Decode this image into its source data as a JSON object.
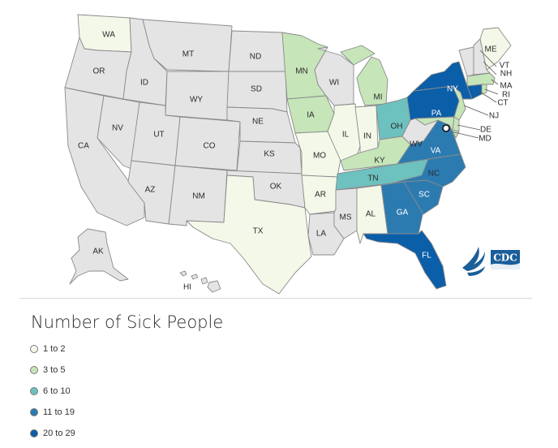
{
  "legend": {
    "title": "Number of Sick People",
    "items": [
      {
        "label": "1 to 2",
        "color": "#f3f8e9"
      },
      {
        "label": "3 to 5",
        "color": "#c6e5b9"
      },
      {
        "label": "6 to 10",
        "color": "#6dc1bf"
      },
      {
        "label": "11 to 19",
        "color": "#2b7bb1"
      },
      {
        "label": "20 to 29",
        "color": "#0b5ea8"
      }
    ]
  },
  "colors": {
    "no_cases": "#e4e4e4",
    "border": "#8a8a8a",
    "cdc_logo": "#1a5e9a"
  },
  "logo": {
    "text": "CDC",
    "icon": "hhs-eagle-icon"
  },
  "states": [
    {
      "abbr": "WA",
      "category": 1
    },
    {
      "abbr": "OR",
      "category": 0
    },
    {
      "abbr": "CA",
      "category": 0
    },
    {
      "abbr": "ID",
      "category": 0
    },
    {
      "abbr": "NV",
      "category": 0
    },
    {
      "abbr": "MT",
      "category": 0
    },
    {
      "abbr": "WY",
      "category": 0
    },
    {
      "abbr": "UT",
      "category": 0
    },
    {
      "abbr": "AZ",
      "category": 0
    },
    {
      "abbr": "CO",
      "category": 0
    },
    {
      "abbr": "NM",
      "category": 0
    },
    {
      "abbr": "ND",
      "category": 0
    },
    {
      "abbr": "SD",
      "category": 0
    },
    {
      "abbr": "NE",
      "category": 0
    },
    {
      "abbr": "KS",
      "category": 0
    },
    {
      "abbr": "OK",
      "category": 0
    },
    {
      "abbr": "TX",
      "category": 1
    },
    {
      "abbr": "MN",
      "category": 2
    },
    {
      "abbr": "IA",
      "category": 2
    },
    {
      "abbr": "MO",
      "category": 1
    },
    {
      "abbr": "AR",
      "category": 1
    },
    {
      "abbr": "LA",
      "category": 0
    },
    {
      "abbr": "WI",
      "category": 0
    },
    {
      "abbr": "IL",
      "category": 1
    },
    {
      "abbr": "IN",
      "category": 1
    },
    {
      "abbr": "MI",
      "category": 2
    },
    {
      "abbr": "OH",
      "category": 3
    },
    {
      "abbr": "KY",
      "category": 2
    },
    {
      "abbr": "TN",
      "category": 3
    },
    {
      "abbr": "MS",
      "category": 0
    },
    {
      "abbr": "AL",
      "category": 1
    },
    {
      "abbr": "GA",
      "category": 4
    },
    {
      "abbr": "FL",
      "category": 5
    },
    {
      "abbr": "SC",
      "category": 4
    },
    {
      "abbr": "NC",
      "category": 4
    },
    {
      "abbr": "VA",
      "category": 4
    },
    {
      "abbr": "WV",
      "category": 0
    },
    {
      "abbr": "PA",
      "category": 5
    },
    {
      "abbr": "NY",
      "category": 5
    },
    {
      "abbr": "NJ",
      "category": 2
    },
    {
      "abbr": "DE",
      "category": 2
    },
    {
      "abbr": "MD",
      "category": 2
    },
    {
      "abbr": "CT",
      "category": 5
    },
    {
      "abbr": "RI",
      "category": 2
    },
    {
      "abbr": "MA",
      "category": 2
    },
    {
      "abbr": "VT",
      "category": 0
    },
    {
      "abbr": "NH",
      "category": 0
    },
    {
      "abbr": "ME",
      "category": 1
    },
    {
      "abbr": "AK",
      "category": 0
    },
    {
      "abbr": "HI",
      "category": 0
    }
  ]
}
